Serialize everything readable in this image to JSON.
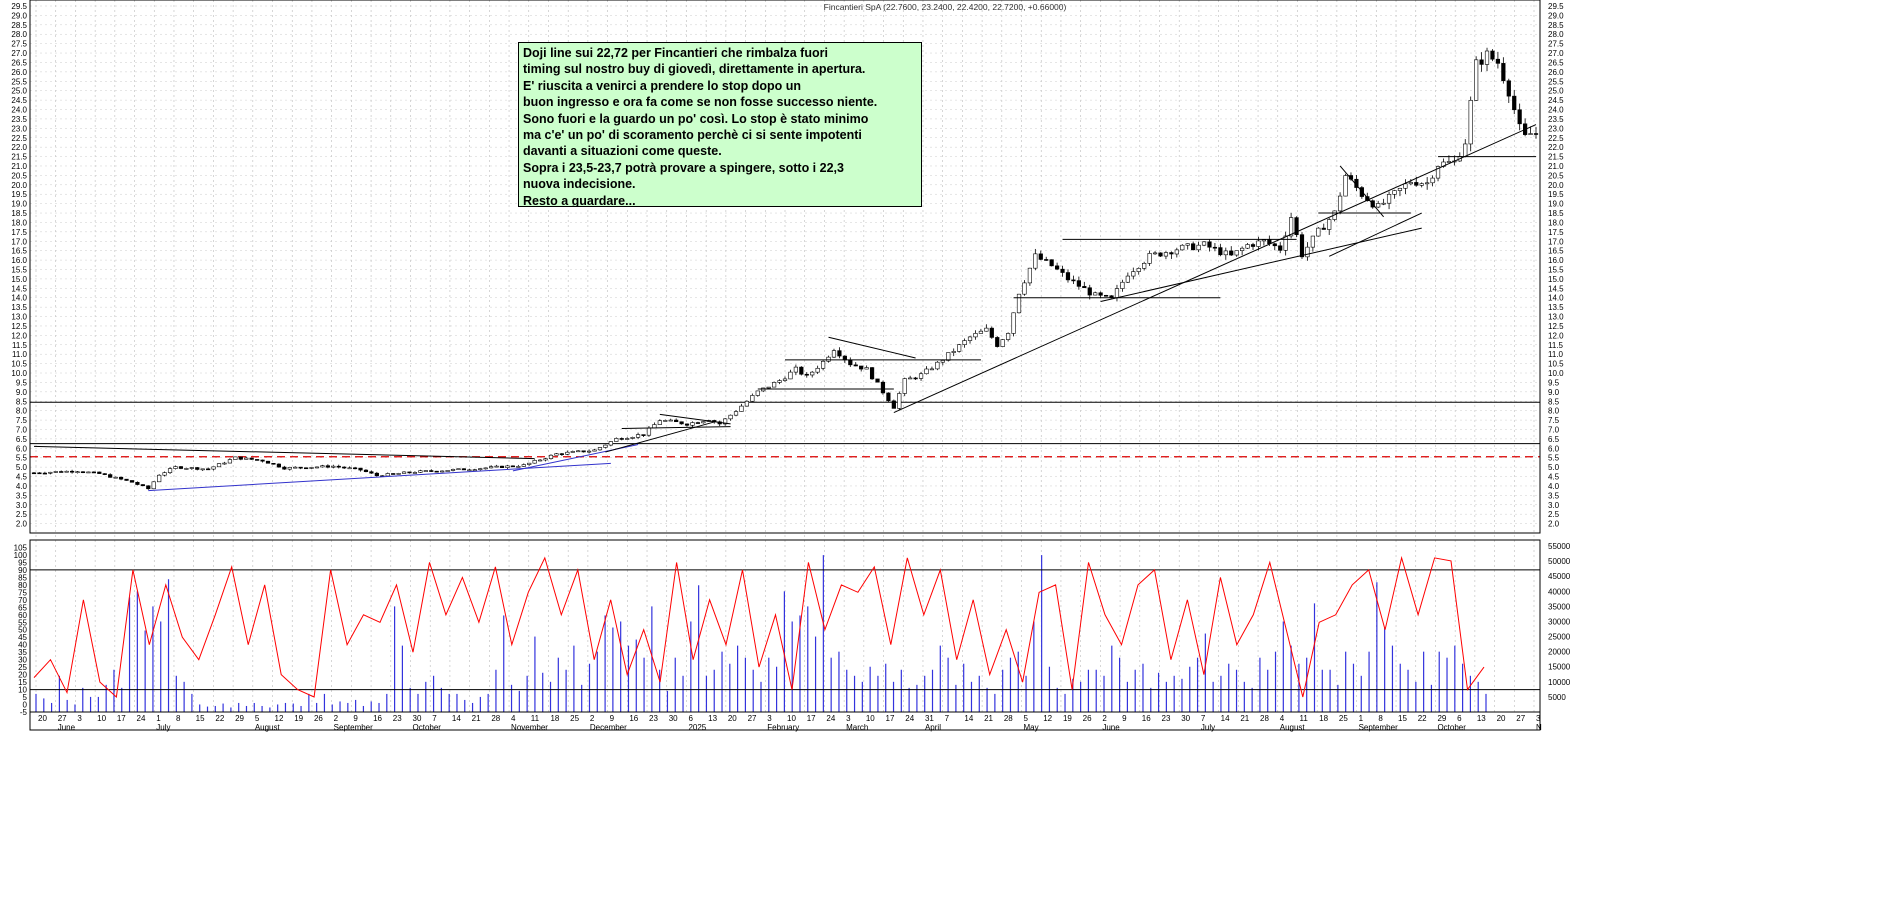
{
  "header": {
    "title": "Fincantieri SpA (22.7600, 23.2400, 22.4200, 22.7200, +0.66000)"
  },
  "annotation": {
    "lines": [
      "Doji line sui 22,72  per Fincantieri che rimbalza fuori",
      "timing sul nostro buy di giovedì, direttamente in apertura.",
      "E' riuscita a venirci a prendere lo stop dopo un",
      "buon ingresso e ora fa come se non fosse successo niente.",
      "Sono fuori e la guardo un po' così. Lo stop è stato minimo",
      "ma c'e' un po' di scoramento perchè ci si sente impotenti",
      "davanti a situazioni come queste.",
      "Sopra i 23,5-23,7  potrà provare a spingere, sotto i 22,3",
      "nuova indecisione.",
      "Resto a guardare..."
    ]
  },
  "colors": {
    "candle": "#000000",
    "trendline_blue": "#3333cc",
    "support_red_dashed": "#dd0000",
    "oscillator": "#ff0000",
    "volume": "#3333dd",
    "annotation_bg": "#ccffcc"
  },
  "chart_data": [
    {
      "type": "candlestick",
      "title": "Fincantieri SpA (22.7600, 23.2400, 22.4200, 22.7200, +0.66000)",
      "ylim": [
        1.5,
        29.5
      ],
      "ytick_step": 0.5,
      "ytick_labels": [
        "2.0",
        "2.5",
        "3.0",
        "3.5",
        "4.0",
        "4.5",
        "5.0",
        "5.5",
        "6.0",
        "6.5",
        "7.0",
        "7.5",
        "8.0",
        "8.5",
        "9.0",
        "9.5",
        "10.0",
        "10.5",
        "11.0",
        "11.5",
        "12.0",
        "12.5",
        "13.0",
        "13.5",
        "14.0",
        "14.5",
        "15.0",
        "15.5",
        "16.0",
        "16.5",
        "17.0",
        "17.5",
        "18.0",
        "18.5",
        "19.0",
        "19.5",
        "20.0",
        "20.5",
        "21.0",
        "21.5",
        "22.0",
        "22.5",
        "23.0",
        "23.5",
        "24.0",
        "24.5",
        "25.0",
        "25.5",
        "26.0",
        "26.5",
        "27.0",
        "27.5",
        "28.0",
        "28.5",
        "29.0",
        "29.5"
      ],
      "grid": true,
      "last_bar": {
        "open": 22.76,
        "high": 23.24,
        "low": 22.42,
        "close": 22.72,
        "change": 0.66
      },
      "price_path": [
        [
          0,
          4.7
        ],
        [
          8,
          4.8
        ],
        [
          12,
          4.65
        ],
        [
          18,
          4.2
        ],
        [
          21,
          3.85
        ],
        [
          23,
          4.6
        ],
        [
          26,
          5.0
        ],
        [
          32,
          4.9
        ],
        [
          37,
          5.5
        ],
        [
          42,
          5.35
        ],
        [
          46,
          4.95
        ],
        [
          55,
          5.05
        ],
        [
          60,
          4.85
        ],
        [
          63,
          4.55
        ],
        [
          70,
          4.75
        ],
        [
          80,
          4.9
        ],
        [
          90,
          5.1
        ],
        [
          96,
          5.7
        ],
        [
          103,
          5.9
        ],
        [
          107,
          6.5
        ],
        [
          112,
          6.75
        ],
        [
          115,
          7.5
        ],
        [
          120,
          7.3
        ],
        [
          124,
          7.55
        ],
        [
          126,
          7.3
        ],
        [
          129,
          8.0
        ],
        [
          133,
          9.0
        ],
        [
          137,
          9.6
        ],
        [
          140,
          10.2
        ],
        [
          142,
          9.8
        ],
        [
          145,
          10.6
        ],
        [
          147,
          11.3
        ],
        [
          150,
          10.5
        ],
        [
          153,
          10.2
        ],
        [
          156,
          9.0
        ],
        [
          158,
          8.2
        ],
        [
          160,
          9.6
        ],
        [
          163,
          9.9
        ],
        [
          166,
          10.5
        ],
        [
          169,
          11.2
        ],
        [
          172,
          11.9
        ],
        [
          175,
          12.3
        ],
        [
          177,
          11.5
        ],
        [
          179,
          12.2
        ],
        [
          181,
          14.3
        ],
        [
          184,
          16.2
        ],
        [
          187,
          15.7
        ],
        [
          190,
          15.0
        ],
        [
          195,
          14.1
        ],
        [
          198,
          13.9
        ],
        [
          201,
          15.3
        ],
        [
          205,
          16.2
        ],
        [
          210,
          16.6
        ],
        [
          215,
          16.8
        ],
        [
          220,
          16.2
        ],
        [
          223,
          16.8
        ],
        [
          226,
          17.0
        ],
        [
          229,
          16.6
        ],
        [
          231,
          18.3
        ],
        [
          233,
          16.3
        ],
        [
          236,
          17.5
        ],
        [
          239,
          18.5
        ],
        [
          241,
          20.5
        ],
        [
          244,
          19.5
        ],
        [
          247,
          18.8
        ],
        [
          250,
          19.5
        ],
        [
          253,
          20.2
        ],
        [
          256,
          20.1
        ],
        [
          258,
          21.1
        ],
        [
          261,
          21.2
        ],
        [
          263,
          22.3
        ],
        [
          265,
          26.4
        ],
        [
          267,
          26.9
        ],
        [
          269,
          26.5
        ],
        [
          271,
          25.0
        ],
        [
          273,
          23.0
        ],
        [
          274,
          22.5
        ],
        [
          275,
          22.72
        ]
      ],
      "horizontal_levels": [
        6.25,
        8.45
      ],
      "support_red_dashed": 5.55,
      "trendlines": [
        {
          "color": "blue",
          "points": [
            [
              21,
              3.75
            ],
            [
              106,
              5.2
            ]
          ]
        },
        {
          "color": "blue",
          "points": [
            [
              88,
              4.8
            ],
            [
              111,
              6.2
            ]
          ]
        },
        {
          "color": "black",
          "points": [
            [
              0,
              6.1
            ],
            [
              92,
              5.45
            ]
          ]
        },
        {
          "color": "black",
          "points": [
            [
              105,
              5.8
            ],
            [
              125,
              7.4
            ]
          ]
        },
        {
          "color": "black",
          "points": [
            [
              115,
              7.8
            ],
            [
              128,
              7.3
            ]
          ]
        },
        {
          "color": "black",
          "points": [
            [
              108,
              7.05
            ],
            [
              128,
              7.15
            ]
          ]
        },
        {
          "color": "black",
          "points": [
            [
              133,
              9.15
            ],
            [
              158,
              9.15
            ]
          ]
        },
        {
          "color": "black",
          "points": [
            [
              138,
              10.7
            ],
            [
              174,
              10.7
            ]
          ]
        },
        {
          "color": "black",
          "points": [
            [
              146,
              11.9
            ],
            [
              162,
              10.8
            ]
          ]
        },
        {
          "color": "black",
          "points": [
            [
              158,
              7.9
            ],
            [
              276,
              23.2
            ]
          ]
        },
        {
          "color": "black",
          "points": [
            [
              180,
              14.0
            ],
            [
              218,
              14.0
            ]
          ]
        },
        {
          "color": "black",
          "points": [
            [
              196,
              13.8
            ],
            [
              255,
              17.7
            ]
          ]
        },
        {
          "color": "black",
          "points": [
            [
              189,
              17.1
            ],
            [
              232,
              17.1
            ]
          ]
        },
        {
          "color": "black",
          "points": [
            [
              236,
              18.5
            ],
            [
              253,
              18.5
            ]
          ]
        },
        {
          "color": "black",
          "points": [
            [
              240,
              21.0
            ],
            [
              248,
              18.3
            ]
          ]
        },
        {
          "color": "black",
          "points": [
            [
              238,
              16.2
            ],
            [
              255,
              18.5
            ]
          ]
        },
        {
          "color": "black",
          "points": [
            [
              258,
              21.5
            ],
            [
              276,
              21.5
            ]
          ]
        }
      ]
    },
    {
      "type": "line",
      "series": [
        {
          "values": [
            18,
            30,
            8,
            70,
            15,
            5,
            90,
            40,
            80,
            45,
            30,
            60,
            92,
            40,
            80,
            20,
            10,
            5,
            90,
            40,
            60,
            55,
            80,
            35,
            95,
            60,
            85,
            55,
            92,
            40,
            75,
            98,
            60,
            90,
            30,
            70,
            20,
            50,
            15,
            95,
            30,
            70,
            40,
            90,
            25,
            60,
            10,
            95,
            50,
            80,
            75,
            92,
            40,
            98,
            60,
            90,
            30,
            70,
            20,
            50,
            15,
            75,
            80,
            10,
            95,
            60,
            40,
            80,
            90,
            30,
            70,
            20,
            85,
            40,
            60,
            95,
            50,
            5,
            55,
            60,
            80,
            90,
            50,
            98,
            60,
            98,
            96,
            10,
            25
          ]
        }
      ],
      "ylim": [
        -5,
        110
      ],
      "ytick_labels": [
        "-5",
        "0",
        "5",
        "10",
        "15",
        "20",
        "25",
        "30",
        "35",
        "40",
        "45",
        "50",
        "55",
        "60",
        "65",
        "70",
        "75",
        "80",
        "85",
        "90",
        "95",
        "100",
        "105"
      ],
      "levels": [
        10,
        90
      ]
    },
    {
      "type": "bar",
      "y2_labels": [
        "5000",
        "10000",
        "15000",
        "20000",
        "25000",
        "30000",
        "35000",
        "40000",
        "45000",
        "50000",
        "55000"
      ],
      "ylim": [
        0,
        57000
      ],
      "values": [
        6000,
        4500,
        3000,
        12000,
        4000,
        2500,
        8000,
        5000,
        5000,
        9000,
        14000,
        8000,
        38000,
        40000,
        27000,
        35000,
        30000,
        44000,
        12000,
        10000,
        6000,
        2500,
        1800,
        2000,
        2800,
        1500,
        3000,
        2000,
        3000,
        2000,
        1500,
        2500,
        3000,
        2800,
        2000,
        6000,
        3000,
        6000,
        2500,
        3500,
        3000,
        4000,
        2000,
        3500,
        3000,
        6000,
        35000,
        22000,
        8000,
        6000,
        10000,
        12000,
        8000,
        6000,
        6000,
        4000,
        3000,
        5000,
        6000,
        14000,
        32000,
        9000,
        7000,
        12000,
        25000,
        13000,
        10000,
        18000,
        14000,
        22000,
        9000,
        16000,
        20000,
        32000,
        28000,
        30000,
        22000,
        24000,
        18000,
        35000,
        14000,
        7000,
        18000,
        12000,
        30000,
        42000,
        12000,
        14000,
        20000,
        16000,
        22000,
        18000,
        14000,
        10000,
        18000,
        15000,
        40000,
        30000,
        32000,
        35000,
        25000,
        52000,
        18000,
        20000,
        14000,
        12000,
        10000,
        15000,
        12000,
        16000,
        10000,
        14000,
        8000,
        9000,
        12000,
        14000,
        22000,
        18000,
        9000,
        16000,
        10000,
        12000,
        8000,
        6000,
        14000,
        18000,
        20000,
        12000,
        30000,
        52000,
        15000,
        8000,
        6000,
        11000,
        10000,
        14000,
        14000,
        12000,
        22000,
        18000,
        10000,
        14000,
        16000,
        8000,
        13000,
        10000,
        12000,
        11000,
        15000,
        18000,
        26000,
        10000,
        12000,
        16000,
        14000,
        10000,
        8000,
        18000,
        14000,
        20000,
        30000,
        22000,
        16000,
        18000,
        36000,
        14000,
        14000,
        9000,
        20000,
        16000,
        12000,
        20000,
        43000,
        28000,
        22000,
        16000,
        14000,
        10000,
        20000,
        9000,
        20000,
        18000,
        22000,
        16000,
        12000,
        10000,
        6000
      ]
    }
  ],
  "x_axis": {
    "day_ticks": [
      "20",
      "27",
      "3",
      "10",
      "17",
      "24",
      "1",
      "8",
      "15",
      "22",
      "29",
      "5",
      "12",
      "19",
      "26",
      "2",
      "9",
      "16",
      "23",
      "30",
      "7",
      "14",
      "21",
      "28",
      "4",
      "11",
      "18",
      "25",
      "2",
      "9",
      "16",
      "23",
      "30",
      "6",
      "13",
      "20",
      "27",
      "3",
      "10",
      "17",
      "24",
      "3",
      "10",
      "17",
      "24",
      "31",
      "7",
      "14",
      "21",
      "28",
      "5",
      "12",
      "19",
      "26",
      "2",
      "9",
      "16",
      "23",
      "30",
      "7",
      "14",
      "21",
      "28",
      "4",
      "11",
      "18",
      "25",
      "1",
      "8",
      "15",
      "22",
      "29",
      "6",
      "13",
      "20",
      "27",
      "3"
    ],
    "month_labels": [
      "June",
      "July",
      "August",
      "September",
      "October",
      "November",
      "December",
      "2025",
      "February",
      "March",
      "April",
      "May",
      "June",
      "July",
      "August",
      "September",
      "October",
      "N"
    ]
  }
}
